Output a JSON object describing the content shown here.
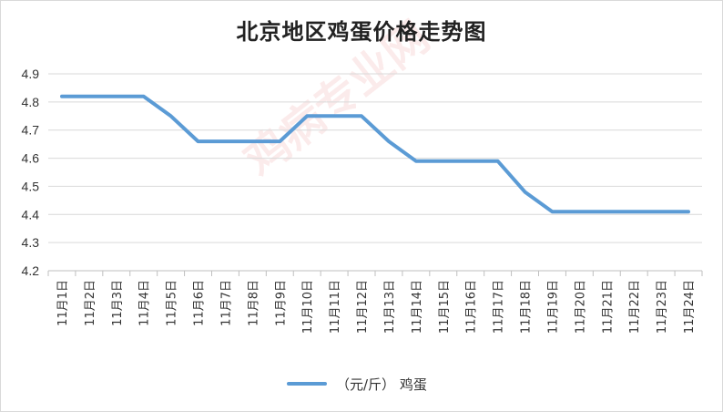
{
  "chart_data": {
    "type": "line",
    "title": "北京地区鸡蛋价格走势图",
    "categories": [
      "11月1日",
      "11月2日",
      "11月3日",
      "11月4日",
      "11月5日",
      "11月6日",
      "11月7日",
      "11月8日",
      "11月9日",
      "11月10日",
      "11月11日",
      "11月12日",
      "11月13日",
      "11月14日",
      "11月15日",
      "11月16日",
      "11月17日",
      "11月18日",
      "11月19日",
      "11月20日",
      "11月21日",
      "11月22日",
      "11月23日",
      "11月24日"
    ],
    "series": [
      {
        "name": "（元/斤） 鸡蛋",
        "values": [
          4.82,
          4.82,
          4.82,
          4.82,
          4.75,
          4.66,
          4.66,
          4.66,
          4.66,
          4.75,
          4.75,
          4.75,
          4.66,
          4.59,
          4.59,
          4.59,
          4.59,
          4.48,
          4.41,
          4.41,
          4.41,
          4.41,
          4.41,
          4.41
        ],
        "color": "#5b9bd5"
      }
    ],
    "ylim": [
      4.2,
      4.9
    ],
    "yticks": [
      "4.9",
      "4.8",
      "4.7",
      "4.6",
      "4.5",
      "4.4",
      "4.3",
      "4.2"
    ],
    "grid": true,
    "legend": "bottom"
  },
  "watermark": "鸡病专业网"
}
